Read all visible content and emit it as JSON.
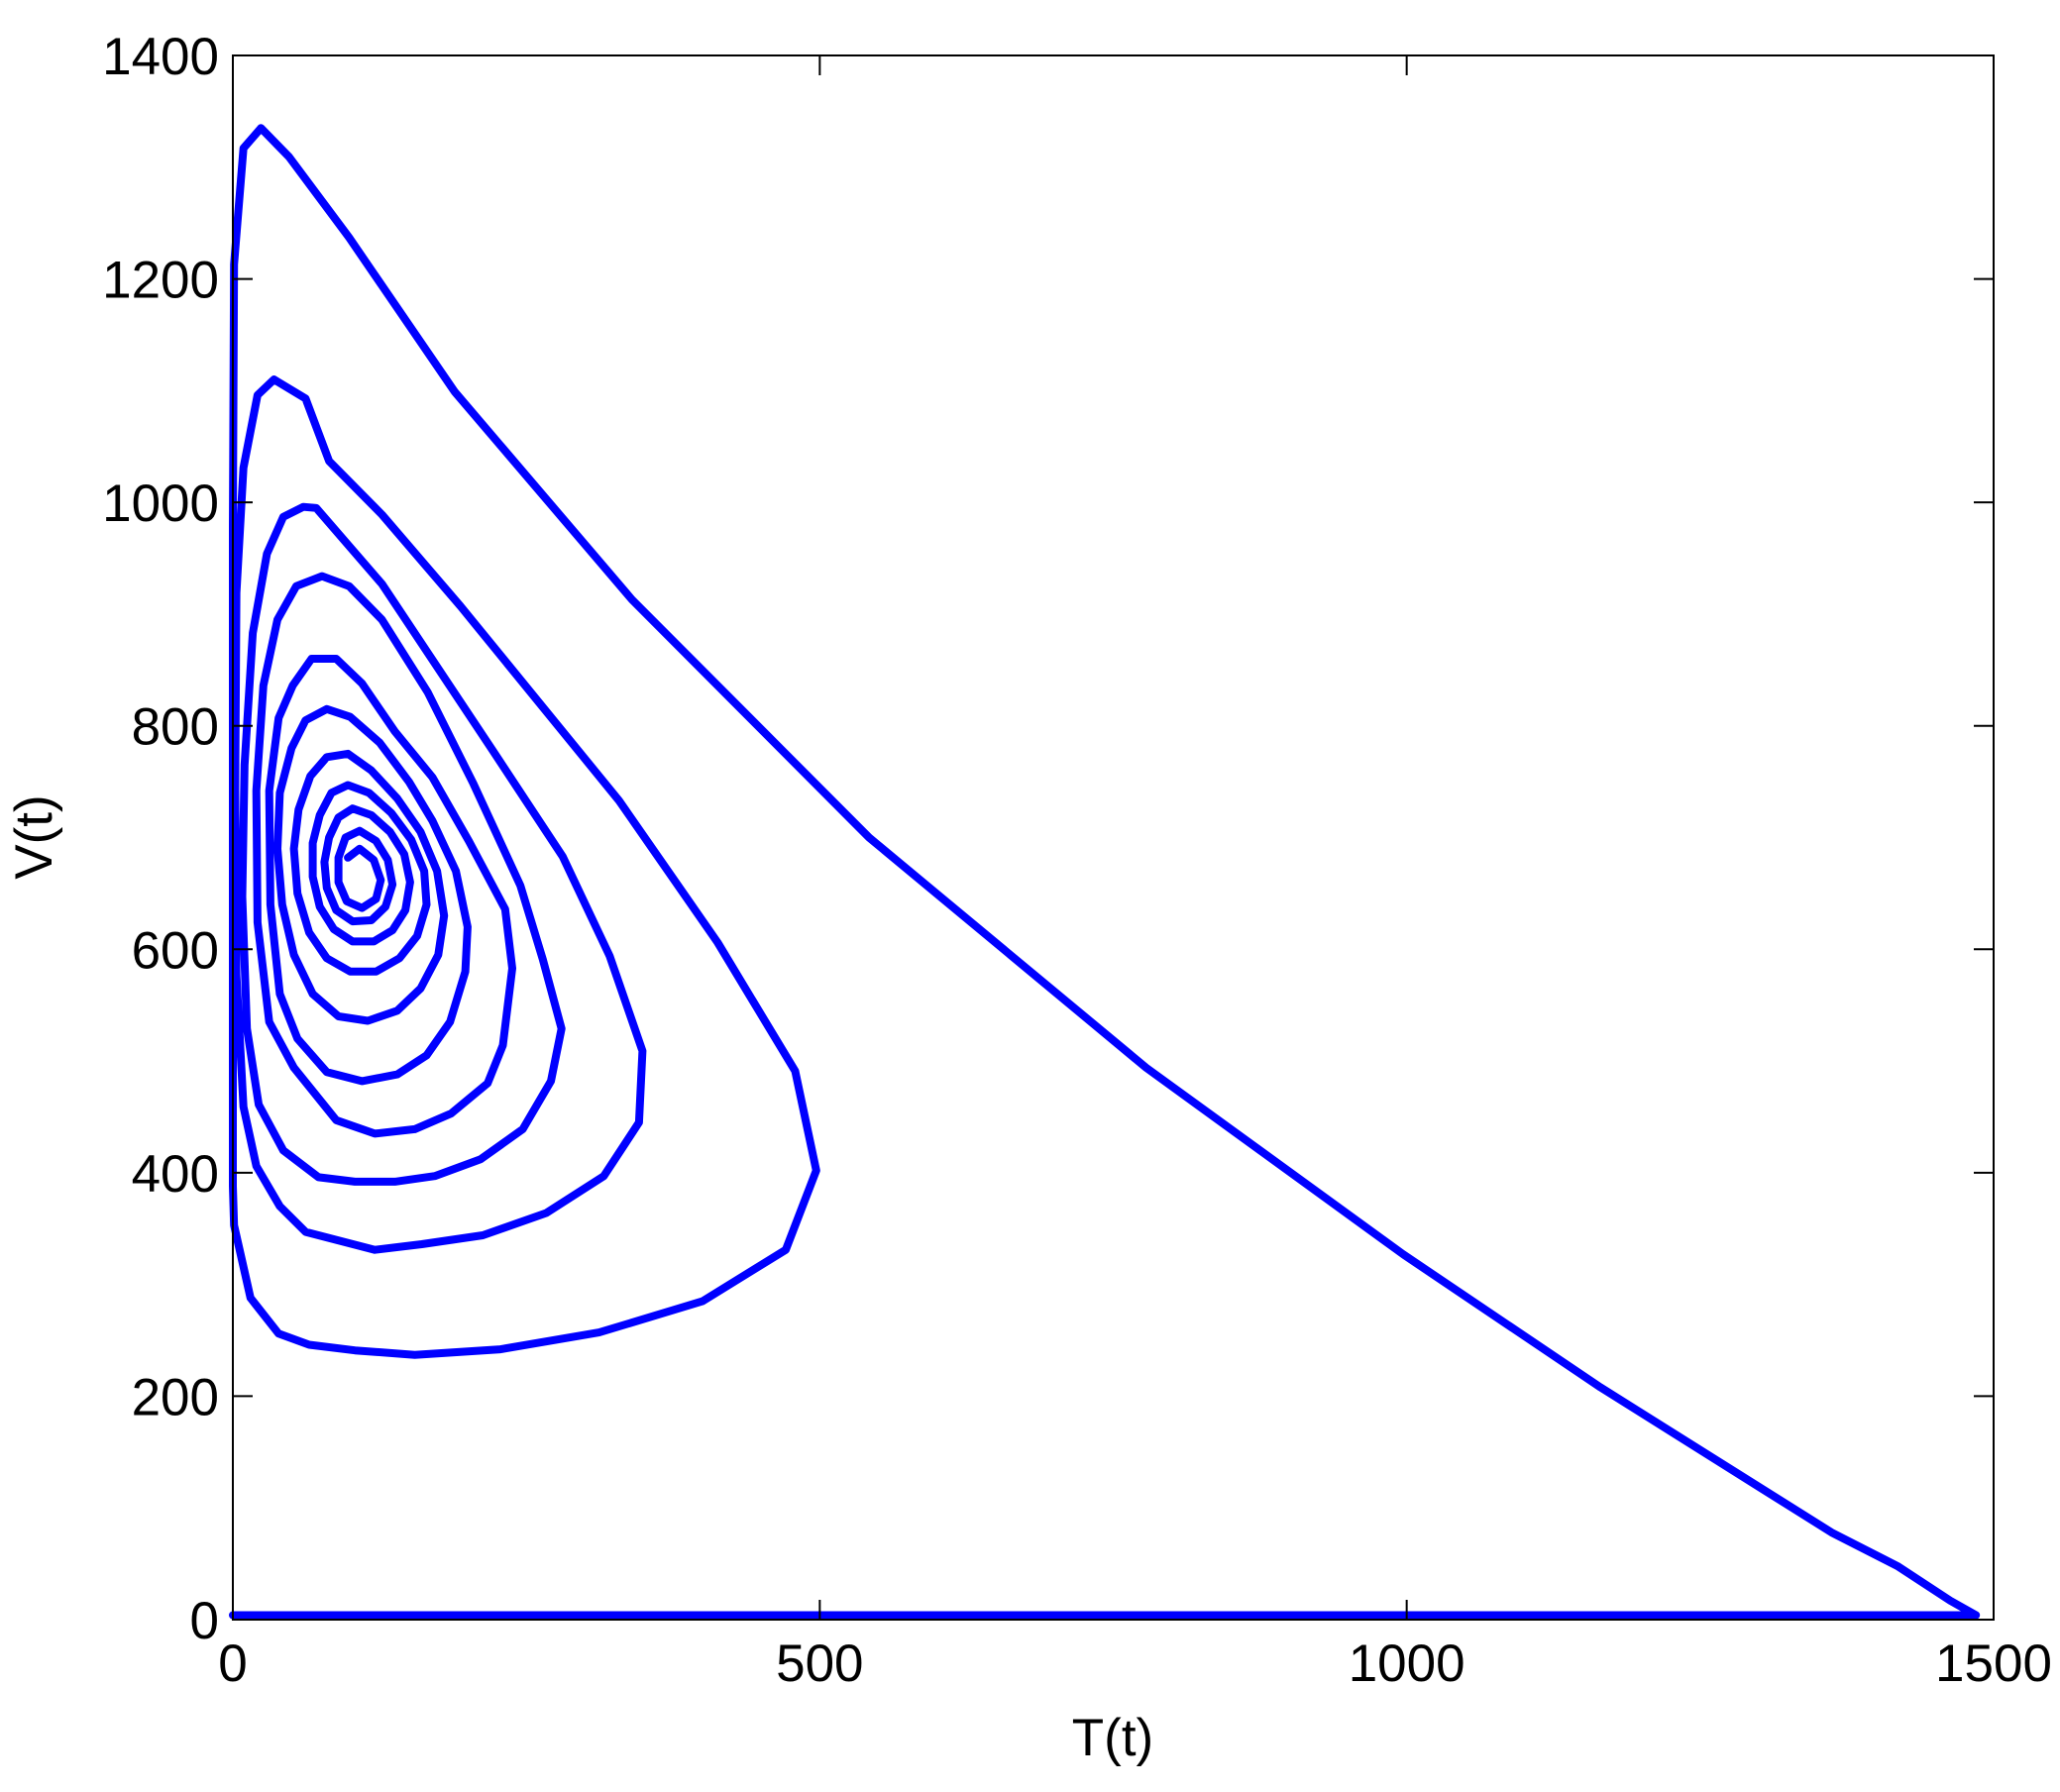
{
  "chart_data": {
    "type": "line",
    "x_label": "T(t)",
    "y_label": "V(t)",
    "xlim": [
      0,
      1500
    ],
    "ylim": [
      0,
      1400
    ],
    "xticks": [
      0,
      500,
      1000,
      1500
    ],
    "yticks": [
      0,
      200,
      400,
      600,
      800,
      1000,
      1200,
      1400
    ],
    "color": "#0000ff",
    "x": [
      0,
      1485,
      1463,
      1418,
      1362,
      1165,
      997,
      778,
      542,
      340,
      189,
      99,
      48,
      24,
      9,
      1,
      0,
      0,
      1,
      15,
      39,
      65,
      104,
      155,
      228,
      312,
      400,
      471,
      497,
      479,
      413,
      329,
      194,
      127,
      82,
      62,
      35,
      21,
      9,
      3,
      2,
      3,
      9,
      20,
      40,
      62,
      121,
      161,
      213,
      267,
      316,
      346,
      349,
      321,
      281,
      222,
      127,
      71,
      60,
      43,
      29,
      17,
      10,
      8,
      12,
      22,
      43,
      73,
      104,
      138,
      172,
      211,
      247,
      271,
      280,
      264,
      245,
      205,
      166,
      127,
      99,
      76,
      54,
      38,
      26,
      20,
      21,
      31,
      52,
      88,
      121,
      155,
      186,
      217,
      230,
      238,
      232,
      201,
      170,
      138,
      110,
      88,
      67,
      51,
      39,
      31,
      32,
      40,
      55,
      80,
      110,
      140,
      165,
      185,
      198,
      200,
      190,
      170,
      150,
      125,
      100,
      80,
      62,
      50,
      40,
      38,
      42,
      52,
      68,
      90,
      115,
      140,
      160,
      175,
      180,
      174,
      160,
      140,
      118,
      98,
      80,
      66,
      56,
      52,
      55,
      65,
      80,
      100,
      122,
      142,
      157,
      165,
      163,
      152,
      135,
      116,
      98,
      84,
      74,
      68,
      68,
      74,
      86,
      102,
      120,
      136,
      147,
      151,
      146,
      134,
      118,
      102,
      90,
      82,
      78,
      80,
      88,
      102,
      118,
      130,
      136,
      132,
      122,
      108,
      96,
      90,
      90,
      97,
      110,
      122,
      126,
      120,
      108,
      98
    ],
    "values": [
      4,
      4,
      17,
      48,
      78,
      208,
      327,
      494,
      700,
      913,
      1099,
      1237,
      1309,
      1335,
      1317,
      1213,
      978,
      388,
      353,
      288,
      256,
      246,
      241,
      237,
      242,
      257,
      285,
      331,
      402,
      491,
      606,
      733,
      907,
      989,
      1037,
      1093,
      1110,
      1096,
      1031,
      919,
      742,
      577,
      459,
      406,
      370,
      347,
      331,
      336,
      344,
      364,
      397,
      445,
      509,
      594,
      683,
      777,
      927,
      995,
      996,
      987,
      954,
      883,
      765,
      647,
      529,
      461,
      420,
      396,
      392,
      392,
      397,
      412,
      439,
      482,
      529,
      591,
      657,
      748,
      830,
      895,
      925,
      934,
      925,
      895,
      836,
      742,
      624,
      535,
      494,
      447,
      435,
      439,
      453,
      480,
      514,
      583,
      636,
      697,
      754,
      795,
      838,
      860,
      860,
      836,
      807,
      742,
      640,
      560,
      520,
      490,
      482,
      488,
      505,
      535,
      580,
      620,
      670,
      715,
      750,
      785,
      808,
      815,
      805,
      780,
      740,
      690,
      640,
      595,
      560,
      540,
      536,
      545,
      565,
      595,
      630,
      670,
      705,
      735,
      760,
      775,
      772,
      755,
      725,
      690,
      650,
      615,
      592,
      580,
      580,
      592,
      612,
      640,
      670,
      698,
      722,
      740,
      747,
      740,
      720,
      695,
      665,
      638,
      618,
      607,
      607,
      617,
      635,
      660,
      685,
      705,
      720,
      726,
      718,
      700,
      678,
      655,
      635,
      625,
      626,
      638,
      658,
      680,
      697,
      706,
      700,
      682,
      660,
      643,
      637,
      645,
      662,
      680,
      690,
      682
    ]
  }
}
